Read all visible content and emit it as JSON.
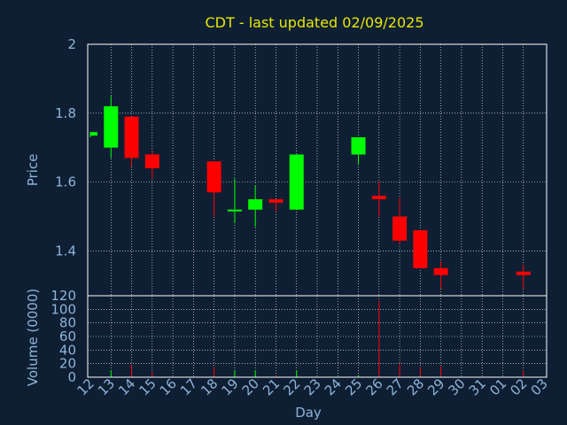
{
  "colors": {
    "background": "#0e1f33",
    "plot_border": "#ffffff",
    "grid": "#ffffff",
    "text": "#8fb4d9",
    "title": "#e8e800",
    "up": "#00ff00",
    "down": "#ff0000"
  },
  "chart_data": [
    {
      "type": "candlestick",
      "title": "CDT - last updated 02/09/2025",
      "ylabel": "Price",
      "ylim": [
        1.27,
        2.0
      ],
      "yticks": [
        1.4,
        1.6,
        1.8,
        2.0
      ],
      "ytick_labels": [
        "1.4",
        "1.6",
        "1.8",
        "2"
      ],
      "grid": true,
      "x_labels": [
        "12",
        "13",
        "14",
        "15",
        "16",
        "17",
        "18",
        "19",
        "20",
        "21",
        "22",
        "23",
        "24",
        "25",
        "26",
        "27",
        "28",
        "29",
        "30",
        "31",
        "01",
        "02",
        "03"
      ],
      "candles": [
        {
          "x": "12",
          "open": 1.735,
          "high": 1.745,
          "low": 1.73,
          "close": 1.745
        },
        {
          "x": "13",
          "open": 1.7,
          "high": 1.85,
          "low": 1.67,
          "close": 1.82
        },
        {
          "x": "14",
          "open": 1.79,
          "high": 1.79,
          "low": 1.645,
          "close": 1.67
        },
        {
          "x": "15",
          "open": 1.68,
          "high": 1.69,
          "low": 1.61,
          "close": 1.64
        },
        {
          "x": "18",
          "open": 1.66,
          "high": 1.66,
          "low": 1.5,
          "close": 1.57
        },
        {
          "x": "19",
          "open": 1.52,
          "high": 1.61,
          "low": 1.48,
          "close": 1.52
        },
        {
          "x": "20",
          "open": 1.52,
          "high": 1.59,
          "low": 1.47,
          "close": 1.55
        },
        {
          "x": "21",
          "open": 1.55,
          "high": 1.55,
          "low": 1.515,
          "close": 1.54
        },
        {
          "x": "22",
          "open": 1.52,
          "high": 1.68,
          "low": 1.52,
          "close": 1.68
        },
        {
          "x": "25",
          "open": 1.68,
          "high": 1.73,
          "low": 1.65,
          "close": 1.73
        },
        {
          "x": "26",
          "open": 1.56,
          "high": 1.6,
          "low": 1.5,
          "close": 1.55
        },
        {
          "x": "27",
          "open": 1.5,
          "high": 1.555,
          "low": 1.42,
          "close": 1.43
        },
        {
          "x": "28",
          "open": 1.46,
          "high": 1.46,
          "low": 1.35,
          "close": 1.35
        },
        {
          "x": "29",
          "open": 1.35,
          "high": 1.37,
          "low": 1.29,
          "close": 1.33
        },
        {
          "x": "02",
          "open": 1.34,
          "high": 1.36,
          "low": 1.29,
          "close": 1.33
        }
      ]
    },
    {
      "type": "bar",
      "ylabel": "Volume (0000)",
      "xlabel": "Day",
      "ylim": [
        0,
        120
      ],
      "yticks": [
        0,
        20,
        40,
        60,
        80,
        100,
        120
      ],
      "ytick_labels": [
        "0",
        "20",
        "40",
        "60",
        "80",
        "100",
        "120"
      ],
      "grid": true,
      "bars": [
        {
          "x": "12",
          "value": 1,
          "direction": "up"
        },
        {
          "x": "13",
          "value": 10,
          "direction": "up"
        },
        {
          "x": "14",
          "value": 18,
          "direction": "down"
        },
        {
          "x": "15",
          "value": 8,
          "direction": "down"
        },
        {
          "x": "18",
          "value": 15,
          "direction": "down"
        },
        {
          "x": "19",
          "value": 10,
          "direction": "up"
        },
        {
          "x": "20",
          "value": 10,
          "direction": "up"
        },
        {
          "x": "21",
          "value": 3,
          "direction": "down"
        },
        {
          "x": "22",
          "value": 10,
          "direction": "up"
        },
        {
          "x": "25",
          "value": 3,
          "direction": "up"
        },
        {
          "x": "26",
          "value": 112,
          "direction": "down"
        },
        {
          "x": "27",
          "value": 20,
          "direction": "down"
        },
        {
          "x": "28",
          "value": 15,
          "direction": "down"
        },
        {
          "x": "29",
          "value": 16,
          "direction": "down"
        },
        {
          "x": "02",
          "value": 10,
          "direction": "down"
        }
      ]
    }
  ]
}
